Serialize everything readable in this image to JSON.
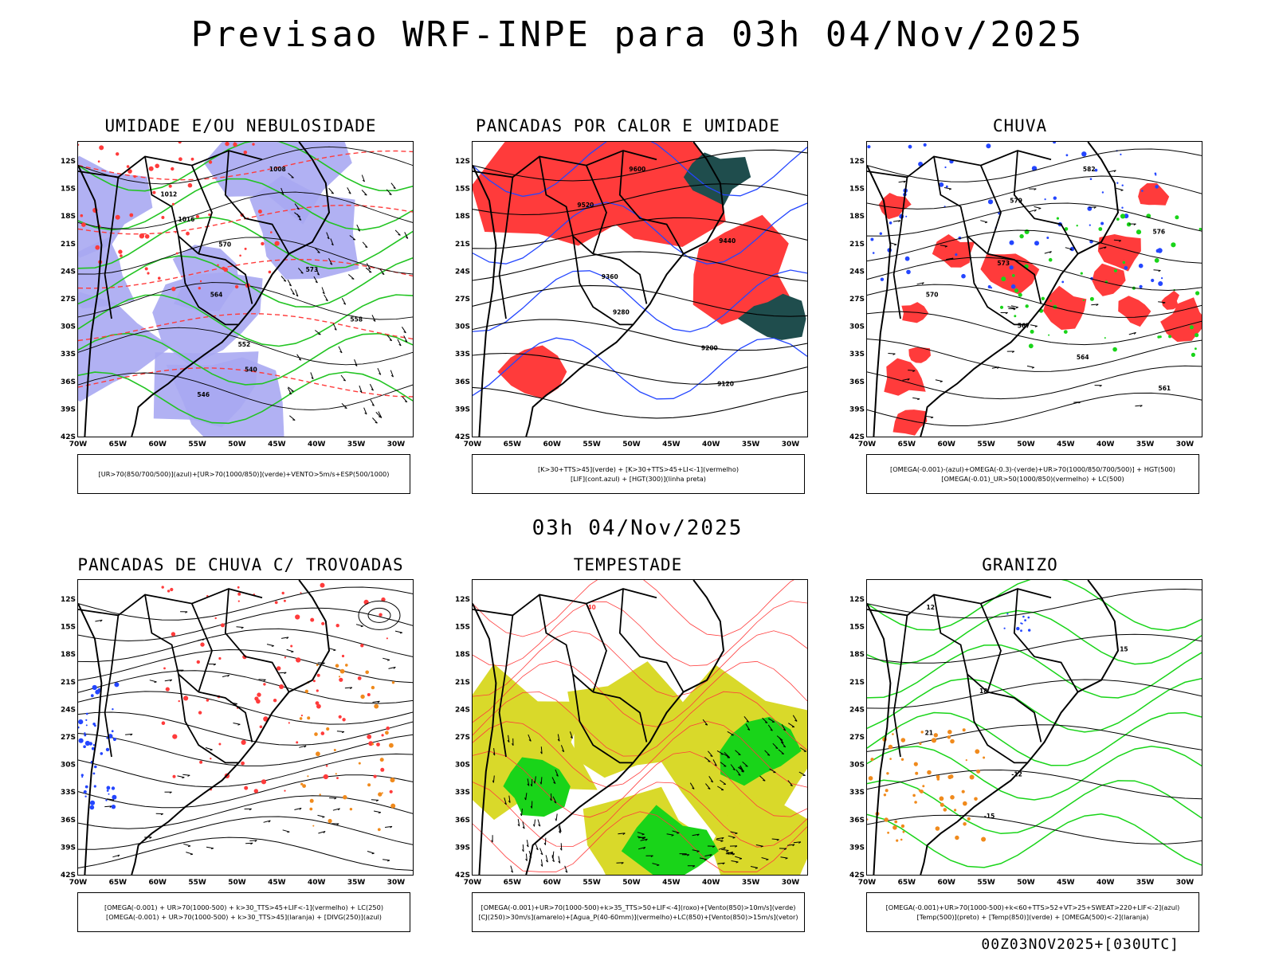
{
  "header": {
    "title": "Previsao WRF-INPE  para 03h 04/Nov/2025",
    "mid_title": "03h 04/Nov/2025",
    "footer": "00Z03NOV2025+[030UTC]"
  },
  "axes": {
    "lat_labels": [
      "12S",
      "15S",
      "18S",
      "21S",
      "24S",
      "27S",
      "30S",
      "33S",
      "36S",
      "39S",
      "42S"
    ],
    "lon_labels": [
      "70W",
      "65W",
      "60W",
      "55W",
      "50W",
      "45W",
      "40W",
      "35W",
      "30W"
    ]
  },
  "colors": {
    "humidity_blue": "#a9a9f2",
    "green": "#22c422",
    "red": "#ff3b3b",
    "dark_teal": "#1f4d4d",
    "blue_line": "#2446ff",
    "orange": "#f08a1c",
    "yellow": "#d9d92a",
    "bright_green": "#19d419"
  },
  "panels": [
    {
      "title": "UMIDADE E/OU NEBULOSIDADE",
      "legend": [
        "[UR>70(850/700/500)](azul)+[UR>70(1000/850)](verde)+VENTO>5m/s+ESP(500/1000)"
      ],
      "contour_labels": [
        "1008",
        "1012",
        "1016",
        "570",
        "573",
        "564",
        "558",
        "552",
        "540",
        "546"
      ]
    },
    {
      "title": "PANCADAS POR CALOR E UMIDADE",
      "legend": [
        "[K>30+TTS>45](verde) + [K>30+TTS>45+LI<-1](vermelho)",
        "[LIF](cont.azul) + [HGT(300)](linha preta)"
      ],
      "contour_labels": [
        "9600",
        "9520",
        "9440",
        "9360",
        "9280",
        "9200",
        "9120"
      ]
    },
    {
      "title": "CHUVA",
      "legend": [
        "[OMEGA(-0.001)-(azul)+OMEGA(-0.3)-(verde)+UR>70(1000/850/700/500)] + HGT(500)",
        "[OMEGA(-0.01)_UR>50(1000/850)(vermelho) + LC(500)"
      ],
      "contour_labels": [
        "582",
        "579",
        "576",
        "573",
        "570",
        "567",
        "564",
        "561"
      ]
    },
    {
      "title": "PANCADAS DE CHUVA C/ TROVOADAS",
      "legend": [
        "[OMEGA(-0.001) + UR>70(1000-500) + k>30_TTS>45+LIF<-1](vermelho) + LC(250)",
        "[OMEGA(-0.001) + UR>70(1000-500) + k>30_TTS>45](laranja) + [DIVG(250)](azul)"
      ],
      "contour_labels": []
    },
    {
      "title": "TEMPESTADE",
      "legend": [
        "[OMEGA(-0.001)+UR>70(1000-500)+k>35_TTS>50+LIF<-4](roxo)+[Vento(850)>10m/s](verde)",
        "[CJ(250)>30m/s](amarelo)+[Agua_P(40-60mm)](vermelho)+LC(850)+[Vento(850)>15m/s](vetor)"
      ],
      "contour_labels": [
        "40"
      ]
    },
    {
      "title": "GRANIZO",
      "legend": [
        "[OMEGA(-0.001)+UR>70(1000-500)+k<60+TTS>52+VT>25+SWEAT>220+LIF<-2](azul)",
        "[Temp(500)](preto) + [Temp(850)](verde) + [OMEGA(500)<-2](laranja)"
      ],
      "contour_labels": [
        "12",
        "15",
        "18",
        "21",
        "-12",
        "-15"
      ]
    }
  ]
}
